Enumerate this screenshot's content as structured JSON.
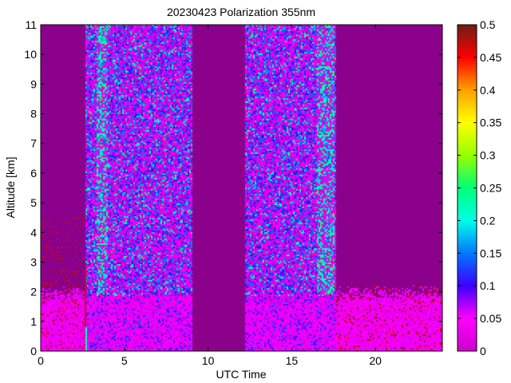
{
  "chart_data": {
    "type": "heatmap",
    "title": "20230423 Polarization 355nm",
    "xlabel": "UTC Time",
    "ylabel": "Altitude [km]",
    "xlim": [
      0,
      24
    ],
    "ylim": [
      0,
      11
    ],
    "x_ticks": [
      0,
      5,
      10,
      15,
      20
    ],
    "y_ticks": [
      0,
      1,
      2,
      3,
      4,
      5,
      6,
      7,
      8,
      9,
      10,
      11
    ],
    "colorbar": {
      "range": [
        0,
        0.5
      ],
      "ticks": [
        "0",
        "0.05",
        "0.1",
        "0.15",
        "0.2",
        "0.25",
        "0.3",
        "0.35",
        "0.4",
        "0.45",
        "0.5"
      ],
      "colormap": "hsv-like (magenta to blue to cyan to green to yellow to orange to red to dark red)"
    },
    "colors": {
      "background_no_data": "#8b008b",
      "low_value": "#cc00cc",
      "mid_value": "#3355ff",
      "high_value": "#00ff80"
    },
    "regions": [
      {
        "x": [
          0,
          2.6
        ],
        "y": [
          0,
          2.3
        ],
        "value_range": [
          0.02,
          0.06
        ],
        "note": "boundary layer, mostly magenta with scattered dark red speckle"
      },
      {
        "x": [
          2.6,
          2.75
        ],
        "y": [
          0,
          11
        ],
        "value_range": [
          0.15,
          0.5
        ],
        "note": "narrow vertical streak"
      },
      {
        "x": [
          3.3,
          4.0
        ],
        "y": [
          1.8,
          11
        ],
        "value_range": [
          0.1,
          0.25
        ],
        "note": "cyan / green vertical stripes"
      },
      {
        "x": [
          3.5,
          9.0
        ],
        "y": [
          2.0,
          11
        ],
        "value_range": [
          0.05,
          0.2
        ],
        "note": "noisy signal, blue/purple speckle"
      },
      {
        "x": [
          2.6,
          9.0
        ],
        "y": [
          0,
          2.0
        ],
        "value_range": [
          0.02,
          0.08
        ],
        "note": "low altitude magenta"
      },
      {
        "x": [
          9.0,
          12.2
        ],
        "y": [
          0,
          11
        ],
        "value_range": [
          0,
          0
        ],
        "note": "no data"
      },
      {
        "x": [
          12.2,
          17.6
        ],
        "y": [
          0,
          11
        ],
        "value_range": [
          0.05,
          0.2
        ],
        "note": "noisy signal, blue/purple speckle"
      },
      {
        "x": [
          16.5,
          17.5
        ],
        "y": [
          1.8,
          11
        ],
        "value_range": [
          0.1,
          0.25
        ],
        "note": "cyan / green vertical stripes"
      },
      {
        "x": [
          17.6,
          24
        ],
        "y": [
          0,
          2.3
        ],
        "value_range": [
          0.02,
          0.06
        ],
        "note": "boundary layer, magenta with dark red speckle"
      },
      {
        "x": [
          17.6,
          24
        ],
        "y": [
          2.3,
          11
        ],
        "value_range": [
          0,
          0
        ],
        "note": "no signal"
      }
    ]
  }
}
